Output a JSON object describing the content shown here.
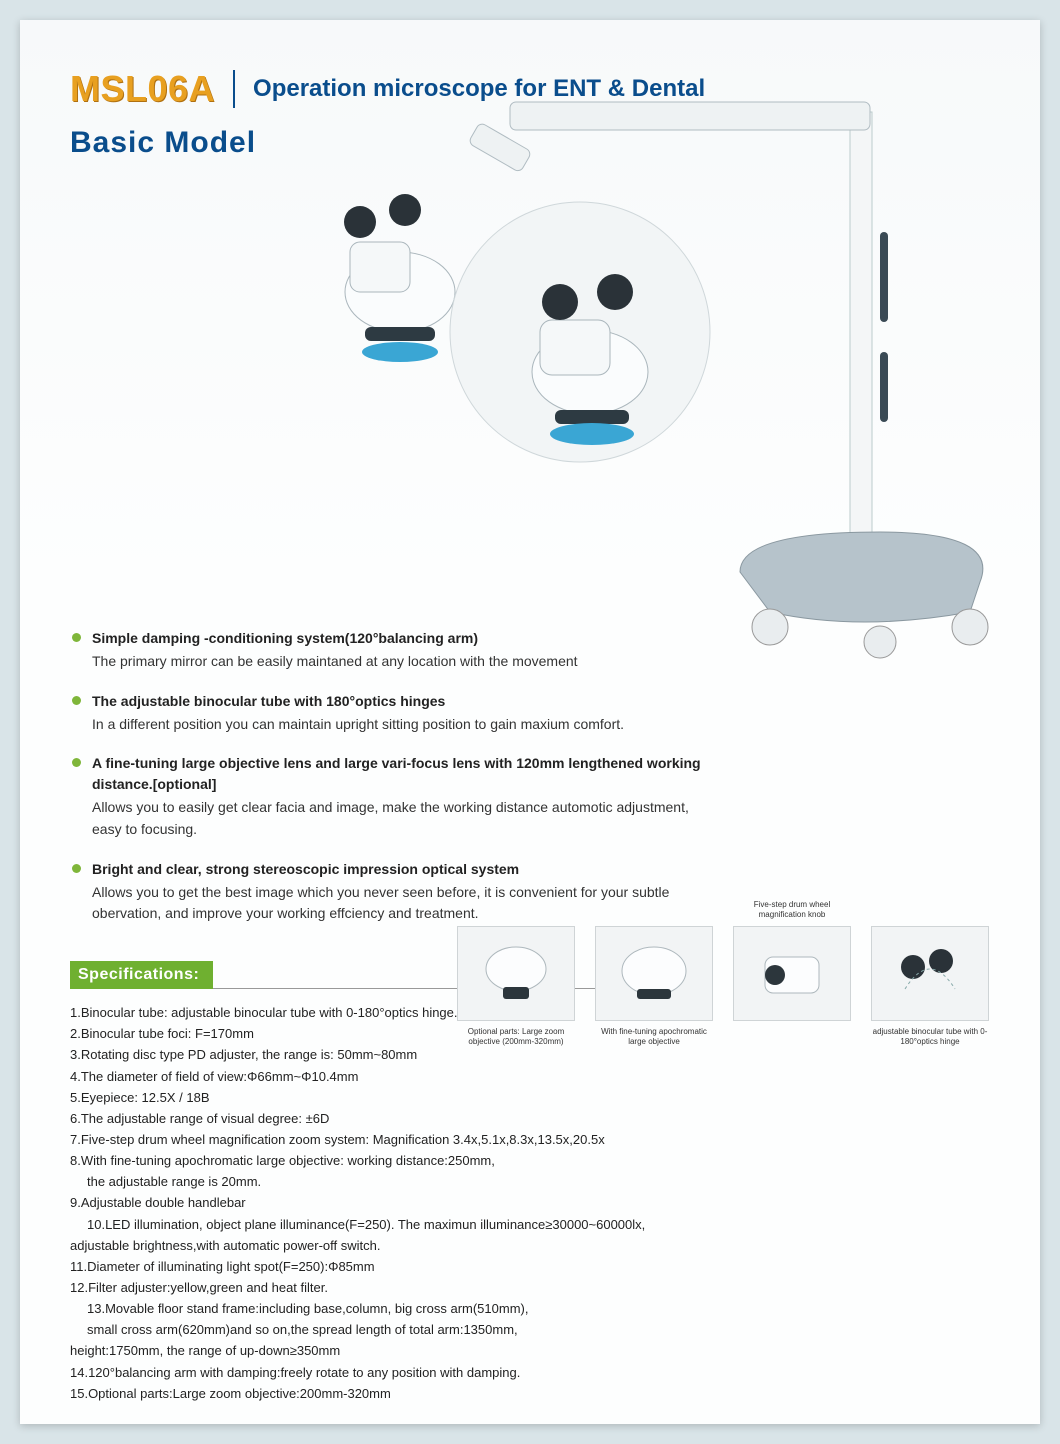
{
  "header": {
    "model_code": "MSL06A",
    "subtitle": "Operation microscope for ENT & Dental",
    "basic_model": "Basic Model"
  },
  "colors": {
    "accent_blue": "#0a4d8c",
    "accent_orange": "#e8a020",
    "accent_green": "#6fb030",
    "bullet_green": "#7fb63a",
    "page_bg": "#fdfefe",
    "outer_bg": "#d9e4e8"
  },
  "features": [
    {
      "title": "Simple damping -conditioning system(120°balancing arm)",
      "body": "The primary mirror can be easily maintaned at any location with the movement"
    },
    {
      "title": "The adjustable binocular tube with 180°optics hinges",
      "body": "In a different position you can maintain upright sitting position to gain maxium comfort."
    },
    {
      "title": "A fine-tuning large objective lens and large vari-focus lens with 120mm lengthened working distance.[optional]",
      "body": "Allows you to easily get clear facia and image, make the working distance automotic adjustment, easy to focusing."
    },
    {
      "title": "Bright and clear, strong stereoscopic impression optical system",
      "body": "Allows you to get the best image which you never seen before, it is convenient for your subtle obervation, and improve your working effciency and treatment."
    }
  ],
  "spec_header": "Specifications:",
  "specs": [
    "1.Binocular tube: adjustable binocular tube with 0-180°optics hinge.",
    "2.Binocular tube foci: F=170mm",
    "3.Rotating disc type PD adjuster, the range is: 50mm~80mm",
    "4.The diameter of field of view:Φ66mm~Φ10.4mm",
    "5.Eyepiece: 12.5X / 18B",
    "6.The adjustable range of visual degree: ±6D",
    "7.Five-step drum wheel magnification zoom system: Magnification 3.4x,5.1x,8.3x,13.5x,20.5x",
    "8.With fine-tuning apochromatic large objective: working distance:250mm,",
    "   the adjustable range is 20mm.",
    "9.Adjustable double handlebar",
    "10.LED illumination, object plane illuminance(F=250). The maximun illuminance≥30000~60000lx,",
    "    adjustable brightness,with automatic power-off switch.",
    "11.Diameter of illuminating light spot(F=250):Φ85mm",
    "12.Filter adjuster:yellow,green and heat filter.",
    "13.Movable floor stand frame:including base,column, big cross arm(510mm),",
    "    small cross arm(620mm)and  so on,the spread length of total arm:1350mm,",
    "    height:1750mm, the range of up-down≥350mm",
    "14.120°balancing arm with damping:freely rotate to any position with damping.",
    "15.Optional parts:Large zoom objective:200mm-320mm"
  ],
  "spec_continuations": [
    8,
    10,
    14,
    15
  ],
  "details": [
    {
      "top": "",
      "caption": "Optional parts: Large zoom objective (200mm-320mm)"
    },
    {
      "top": "",
      "caption": "With fine-tuning apochromatic large objective"
    },
    {
      "top": "Five-step drum wheel magnification knob",
      "caption": ""
    },
    {
      "top": "",
      "caption": "adjustable binocular tube with 0-180°optics hinge"
    }
  ]
}
